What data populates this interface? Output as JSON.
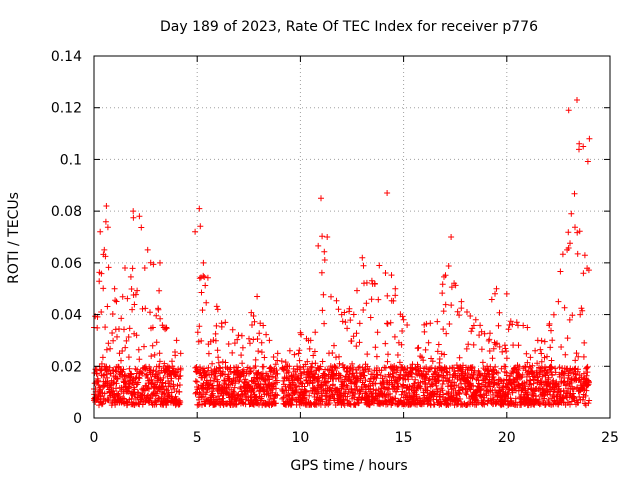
{
  "chart_data": {
    "type": "scatter",
    "title": "Day 189 of 2023, Rate Of TEC Index for receiver p776",
    "xlabel": "GPS time / hours",
    "ylabel": "ROTI / TECUs",
    "xlim": [
      0,
      25
    ],
    "ylim": [
      0,
      0.14
    ],
    "x_ticks": [
      0,
      5,
      10,
      15,
      20,
      25
    ],
    "y_ticks": [
      0,
      0.02,
      0.04,
      0.06,
      0.08,
      0.1,
      0.12,
      0.14
    ],
    "grid": true,
    "marker": "+",
    "color": "#ff0000",
    "data_gaps_hours": [
      [
        4.2,
        4.9
      ],
      [
        8.9,
        9.1
      ]
    ],
    "series": [
      {
        "name": "ROTI",
        "baseline_range": [
          0.005,
          0.02
        ],
        "envelope": [
          {
            "x": 0.0,
            "y": 0.035
          },
          {
            "x": 0.3,
            "y": 0.072
          },
          {
            "x": 0.5,
            "y": 0.065
          },
          {
            "x": 0.6,
            "y": 0.082
          },
          {
            "x": 1.0,
            "y": 0.05
          },
          {
            "x": 1.5,
            "y": 0.058
          },
          {
            "x": 1.9,
            "y": 0.08
          },
          {
            "x": 2.2,
            "y": 0.078
          },
          {
            "x": 2.6,
            "y": 0.065
          },
          {
            "x": 3.2,
            "y": 0.06
          },
          {
            "x": 3.5,
            "y": 0.035
          },
          {
            "x": 4.0,
            "y": 0.03
          },
          {
            "x": 4.2,
            "y": 0.025
          },
          {
            "x": 4.9,
            "y": 0.072
          },
          {
            "x": 5.1,
            "y": 0.081
          },
          {
            "x": 5.3,
            "y": 0.06
          },
          {
            "x": 6.0,
            "y": 0.042
          },
          {
            "x": 7.0,
            "y": 0.032
          },
          {
            "x": 7.9,
            "y": 0.047
          },
          {
            "x": 8.5,
            "y": 0.03
          },
          {
            "x": 8.9,
            "y": 0.025
          },
          {
            "x": 9.1,
            "y": 0.022
          },
          {
            "x": 10.0,
            "y": 0.033
          },
          {
            "x": 10.5,
            "y": 0.03
          },
          {
            "x": 11.0,
            "y": 0.085
          },
          {
            "x": 11.3,
            "y": 0.07
          },
          {
            "x": 12.0,
            "y": 0.04
          },
          {
            "x": 13.0,
            "y": 0.062
          },
          {
            "x": 13.6,
            "y": 0.052
          },
          {
            "x": 14.2,
            "y": 0.087
          },
          {
            "x": 14.6,
            "y": 0.05
          },
          {
            "x": 15.0,
            "y": 0.038
          },
          {
            "x": 16.0,
            "y": 0.036
          },
          {
            "x": 17.3,
            "y": 0.07
          },
          {
            "x": 17.8,
            "y": 0.045
          },
          {
            "x": 18.5,
            "y": 0.038
          },
          {
            "x": 19.5,
            "y": 0.05
          },
          {
            "x": 20.0,
            "y": 0.048
          },
          {
            "x": 21.0,
            "y": 0.035
          },
          {
            "x": 21.5,
            "y": 0.03
          },
          {
            "x": 22.5,
            "y": 0.045
          },
          {
            "x": 23.0,
            "y": 0.119
          },
          {
            "x": 23.4,
            "y": 0.123
          },
          {
            "x": 23.7,
            "y": 0.105
          },
          {
            "x": 24.0,
            "y": 0.108
          }
        ]
      }
    ]
  }
}
